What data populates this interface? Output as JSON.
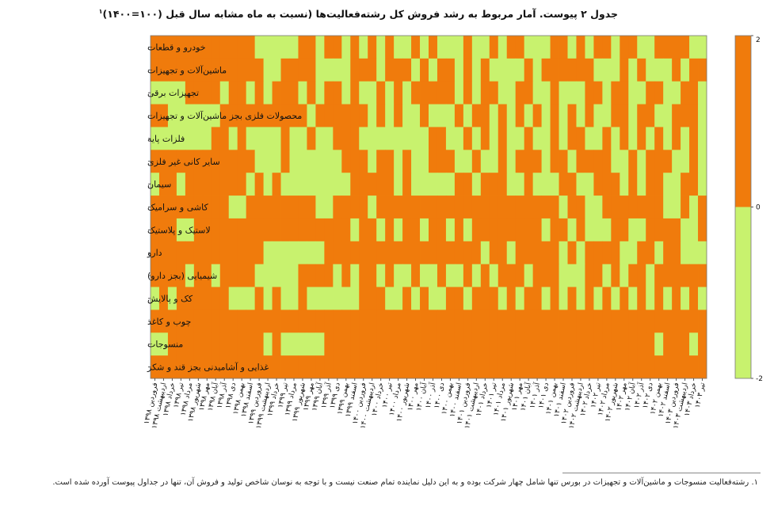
{
  "title": "جدول ۲ پیوست. آمار مربوط به رشد فروش کل رشته‌فعالیت‌ها (نسبت به ماه مشابه سال قبل (۱۰۰=۱۴۰۰)",
  "title_sup": "۱",
  "footnote": "۱. رشته‌فعالیت منسوجات و ماشین‌آلات و تجهیزات در بورس تنها شامل چهار شرکت بوده و به این دلیل نماینده تمام صنعت نیست و با توجه به نوسان شاخص تولید و فروش آن، تنها در جداول پیوست آورده شده است.",
  "chart_data": {
    "type": "heatmap",
    "title": "جدول ۲ پیوست. آمار مربوط به رشد فروش کل رشته‌فعالیت‌ها (نسبت به ماه مشابه سال قبل (۱۰۰=۱۴۰۰)",
    "rows": [
      "خودرو و قطعات",
      "ماشین‌آلات و تجهیزات",
      "تجهیزات برقی",
      "محصولات فلزی بجز ماشین‌آلات و تجهیزات",
      "فلزات پایه",
      "سایر کانی غیر فلزی",
      "سیمان",
      "کاشی و سرامیک",
      "لاستیک و پلاستیک",
      "دارو",
      "شیمیایی (بجز دارو)",
      "کک و پالایش",
      "چوب و کاغذ",
      "منسوجات",
      "غذایی و آشامیدنی بجز قند و شکر"
    ],
    "columns": [
      "فروردین ۱۳۹۸",
      "اردیبهشت ۱۳۹۸",
      "خرداد ۱۳۹۸",
      "تیر ۱۳۹۸",
      "مرداد ۱۳۹۸",
      "شهریور ۱۳۹۸",
      "مهر ۱۳۹۸",
      "آبان ۱۳۹۸",
      "آذر ۱۳۹۸",
      "دی ۱۳۹۸",
      "بهمن ۱۳۹۸",
      "اسفند ۱۳۹۸",
      "فروردین ۱۳۹۹",
      "اردیبهشت ۱۳۹۹",
      "خرداد ۱۳۹۹",
      "تیر ۱۳۹۹",
      "مرداد ۱۳۹۹",
      "شهریور ۱۳۹۹",
      "مهر ۱۳۹۹",
      "آبان ۱۳۹۹",
      "آذر ۱۳۹۹",
      "دی ۱۳۹۹",
      "بهمن ۱۳۹۹",
      "اسفند ۱۳۹۹",
      "فروردین ۱۴۰۰",
      "اردیبهشت ۱۴۰۰",
      "خرداد ۱۴۰۰",
      "تیر ۱۴۰۰",
      "مرداد ۱۴۰۰",
      "شهریور ۱۴۰۰",
      "مهر ۱۴۰۰",
      "آبان ۱۴۰۰",
      "آذر ۱۴۰۰",
      "دی ۱۴۰۰",
      "بهمن ۱۴۰۰",
      "اسفند ۱۴۰۰",
      "فروردین ۱۴۰۱",
      "اردیبهشت ۱۴۰۱",
      "خرداد ۱۴۰۱",
      "تیر ۱۴۰۱",
      "مرداد ۱۴۰۱",
      "شهریور ۱۴۰۱",
      "مهر ۱۴۰۱",
      "آبان ۱۴۰۱",
      "آذر ۱۴۰۱",
      "دی ۱۴۰۱",
      "بهمن ۱۴۰۱",
      "اسفند ۱۴۰۱",
      "فروردین ۱۴۰۲",
      "اردیبهشت ۱۴۰۲",
      "خرداد ۱۴۰۲",
      "تیر ۱۴۰۲",
      "مرداد ۱۴۰۲",
      "شهریور ۱۴۰۲",
      "مهر ۱۴۰۲",
      "آبان ۱۴۰۲",
      "آذر ۱۴۰۲",
      "دی ۱۴۰۲",
      "بهمن ۱۴۰۲",
      "اسفند ۱۴۰۲",
      "فروردین ۱۴۰۳",
      "اردیبهشت ۱۴۰۳",
      "خرداد ۱۴۰۳",
      "تیر ۱۴۰۳"
    ],
    "colorbar": {
      "min": -2,
      "max": 2,
      "ticks": [
        "2",
        "0",
        "-2"
      ],
      "colors": [
        "#c8f26e",
        "#f07b0c"
      ]
    },
    "values": [
      "1 1 1 1 1 1 1 1 1 1 1 1 0 0 0 0 0 1 1 0 1 1 0 1 0 1 0 1 0 0 1 0 1 0 0 0 1 0 0 1 0 1 1 0 0 0 1 1 0 1 0 1 1 0 1 1 0 0 1 1 1 1 0 0",
      "1 1 1 1 1 1 1 1 1 1 1 1 1 0 0 1 1 1 1 0 0 0 0 1 1 1 0 1 1 1 0 1 0 1 1 0 1 0 1 0 0 0 0 1 0 1 1 1 1 1 1 0 0 0 1 0 1 0 0 0 1 0 1 1",
      "0 0 0 0 1 1 1 1 0 1 1 0 1 0 1 1 1 0 1 0 1 1 0 1 0 0 1 0 1 0 1 1 1 1 1 0 1 0 1 1 0 0 1 1 0 0 1 0 0 0 1 1 0 1 1 0 0 1 1 0 0 1 1 0",
      "1 1 0 0 0 0 0 0 1 1 1 1 1 1 1 1 1 1 0 1 1 1 1 1 1 0 1 0 1 0 0 1 0 0 0 1 0 1 1 0 1 0 1 0 1 0 1 0 1 0 1 0 0 1 1 0 1 1 0 0 1 1 1 0",
      "0 0 0 0 0 0 0 1 1 0 1 0 0 0 0 1 0 0 1 0 0 1 1 1 0 0 0 0 0 0 0 0 1 1 0 0 1 0 1 0 1 0 0 1 0 0 1 0 1 1 0 0 1 0 1 0 1 0 1 0 1 0 1 0",
      "1 1 1 1 1 1 1 1 1 1 1 1 0 0 0 1 0 0 0 0 0 0 1 1 1 0 1 1 0 1 0 0 1 1 1 0 0 1 0 0 1 0 1 1 1 0 1 1 0 1 1 1 1 0 0 1 0 1 1 1 0 0 1 0",
      "0 1 1 0 1 1 1 1 1 1 1 0 1 0 1 0 0 0 0 0 0 0 0 1 1 1 1 1 0 1 0 0 0 0 0 1 1 0 1 1 1 0 0 1 0 0 0 1 1 0 0 1 1 1 0 1 0 1 1 0 0 1 1 0",
      "1 1 1 1 1 1 1 1 1 0 0 1 1 1 1 1 1 1 1 0 0 1 1 1 1 0 1 1 1 1 1 1 1 1 1 1 1 1 1 1 1 1 1 1 1 1 1 0 1 1 0 0 1 1 1 1 1 1 1 0 0 1 0 1",
      "1 1 1 0 0 1 1 1 1 1 1 1 1 1 1 1 1 1 1 1 1 1 1 0 1 1 0 1 0 1 1 0 1 1 0 1 0 1 1 1 1 1 1 1 1 0 1 1 0 1 0 0 0 1 1 0 0 1 1 1 1 0 0 1",
      "1 1 1 1 1 1 1 1 1 1 1 1 1 0 0 0 0 0 0 0 1 1 1 1 1 1 1 1 1 1 1 1 1 1 1 1 1 1 0 1 1 0 1 1 1 1 1 0 1 0 1 1 1 1 0 0 1 1 0 1 1 0 0 0",
      "1 1 1 1 0 1 1 0 1 1 1 1 0 0 0 0 0 1 1 1 1 0 1 0 1 1 0 1 0 0 1 0 0 1 0 0 1 0 1 0 1 1 1 0 1 1 1 0 0 0 1 1 0 1 0 1 1 0 1 1 1 1 1 1",
      "0 1 0 1 1 1 1 1 1 0 0 0 1 0 1 0 0 1 0 0 0 0 0 0 1 1 1 0 0 1 0 1 0 0 1 1 0 1 1 1 0 1 0 1 1 0 1 0 1 0 1 0 1 0 1 0 1 0 1 0 1 0 1 0",
      "1 1 1 1 1 1 1 1 1 1 1 1 1 1 1 1 1 1 1 1 1 1 1 1 1 1 1 1 1 1 1 1 1 1 1 1 1 1 1 1 1 1 1 1 1 1 1 1 1 1 1 1 1 1 1 1 1 1 1 1 1 1 1 1",
      "0 0 1 1 1 1 1 1 1 1 1 1 1 0 1 0 0 0 0 0 1 1 1 1 1 1 1 1 1 1 1 1 1 1 1 1 1 1 1 1 1 1 1 1 1 1 1 1 1 1 1 1 1 1 1 1 1 1 0 1 1 1 0 1",
      "1 1 1 1 1 1 1 1 1 1 1 1 1 1 1 1 1 1 1 1 1 1 1 1 1 1 1 1 1 1 1 1 1 1 1 1 1 1 1 1 1 1 1 1 1 1 1 1 1 1 1 1 1 1 1 1 1 1 1 1 1 1 1 1"
    ]
  },
  "colors": {
    "positive": "#f07b0c",
    "negative": "#c8f26e"
  }
}
